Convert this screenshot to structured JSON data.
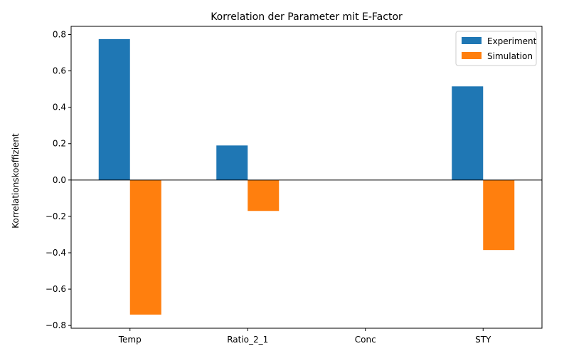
{
  "chart_data": {
    "type": "bar",
    "title": "Korrelation der Parameter mit E-Factor",
    "xlabel": "",
    "ylabel": "Korrelationskoeffizient",
    "categories": [
      "Temp",
      "Ratio_2_1",
      "Conc",
      "STY"
    ],
    "series": [
      {
        "name": "Experiment",
        "color": "#1f77b4",
        "values": [
          0.775,
          0.19,
          0.0,
          0.515
        ]
      },
      {
        "name": "Simulation",
        "color": "#ff7f0e",
        "values": [
          -0.74,
          -0.17,
          0.0,
          -0.385
        ]
      }
    ],
    "ylim": [
      -0.815,
      0.845
    ],
    "yticks": [
      -0.8,
      -0.6,
      -0.4,
      -0.2,
      0.0,
      0.2,
      0.4,
      0.6,
      0.8
    ],
    "ytick_labels": [
      "−0.8",
      "−0.6",
      "−0.4",
      "−0.2",
      "0.0",
      "0.2",
      "0.4",
      "0.6",
      "0.8"
    ],
    "grid": false,
    "zero_line": true,
    "legend_position": "top-right"
  }
}
